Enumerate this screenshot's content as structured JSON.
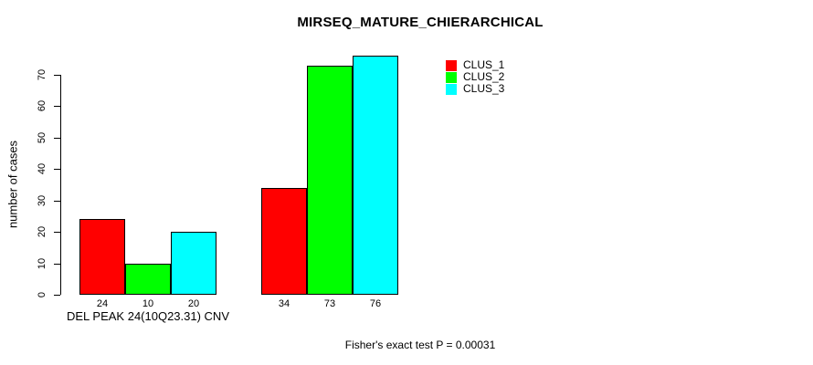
{
  "chart_data": {
    "type": "bar",
    "title": "MIRSEQ_MATURE_CHIERARCHICAL",
    "ylabel": "number of cases",
    "xlabel": "",
    "ylim": [
      0,
      70
    ],
    "yticks": [
      0,
      10,
      20,
      30,
      40,
      50,
      60,
      70
    ],
    "grid": false,
    "legend_position": "top-right-inside",
    "categories": [
      "DEL PEAK 24(10Q23.31) CNV",
      ""
    ],
    "series": [
      {
        "name": "CLUS_1",
        "color": "#ff0000",
        "values": [
          24,
          34
        ]
      },
      {
        "name": "CLUS_2",
        "color": "#00ff00",
        "values": [
          10,
          73
        ]
      },
      {
        "name": "CLUS_3",
        "color": "#00ffff",
        "values": [
          20,
          76
        ]
      }
    ],
    "show_bar_values": true,
    "footnote": "Fisher's exact test P = 0.00031"
  }
}
